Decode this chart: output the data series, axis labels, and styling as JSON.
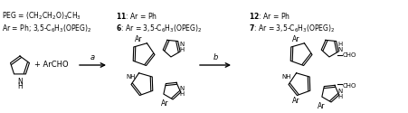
{
  "background_color": "#ffffff",
  "text_color": "#000000",
  "figsize": [
    4.51,
    1.25
  ],
  "dpi": 100,
  "step_a": "a",
  "step_b": "b",
  "reactant_text": "+ ArCHO",
  "caption_line1a": "Ar = Ph; 3,5-C",
  "caption_line1b": "6",
  "caption_line1c": "H",
  "caption_line1d": "3",
  "caption_line1e": "(OPEG)",
  "caption_line1f": "2",
  "caption_line2": "PEG = (CH₂CH₂O)₃CH₃",
  "font_size": 5.5,
  "font_size_bold": 6.0,
  "lw": 0.8
}
